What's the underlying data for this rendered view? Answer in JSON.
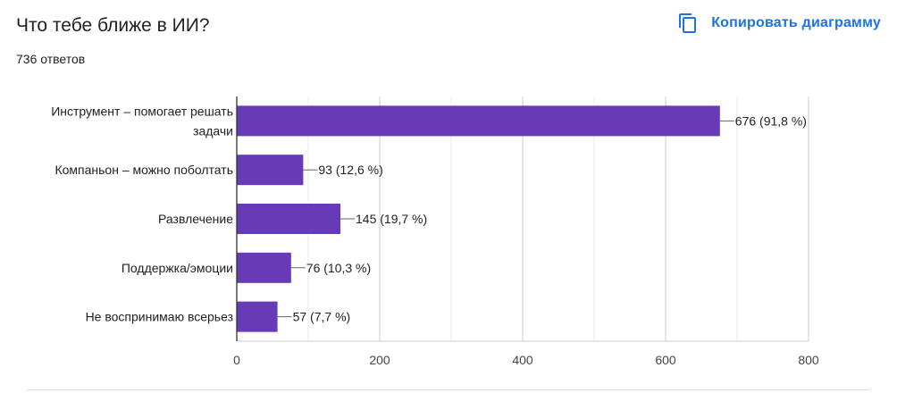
{
  "header": {
    "title": "Что тебе ближе в ИИ?",
    "response_count": "736 ответов",
    "copy_label": "Копировать диаграмму",
    "copy_icon": "copy-icon"
  },
  "colors": {
    "bar": "#673ab7",
    "accent": "#1a73e8",
    "grid": "#e0e0e0",
    "axis": "#333333",
    "text": "#202124"
  },
  "chart_data": {
    "type": "bar",
    "orientation": "horizontal",
    "categories": [
      [
        "Инструмент – помогает решать",
        "задачи"
      ],
      [
        "Компаньон – можно поболтать"
      ],
      [
        "Развлечение"
      ],
      [
        "Поддержка/эмоции"
      ],
      [
        "Не воспринимаю всерьез"
      ]
    ],
    "values": [
      676,
      93,
      145,
      76,
      57
    ],
    "value_labels": [
      "676 (91,8 %)",
      "93 (12,6 %)",
      "145 (19,7 %)",
      "76 (10,3 %)",
      "57 (7,7 %)"
    ],
    "xlim": [
      0,
      800
    ],
    "xticks": [
      0,
      200,
      400,
      600,
      800
    ],
    "grid": true
  }
}
